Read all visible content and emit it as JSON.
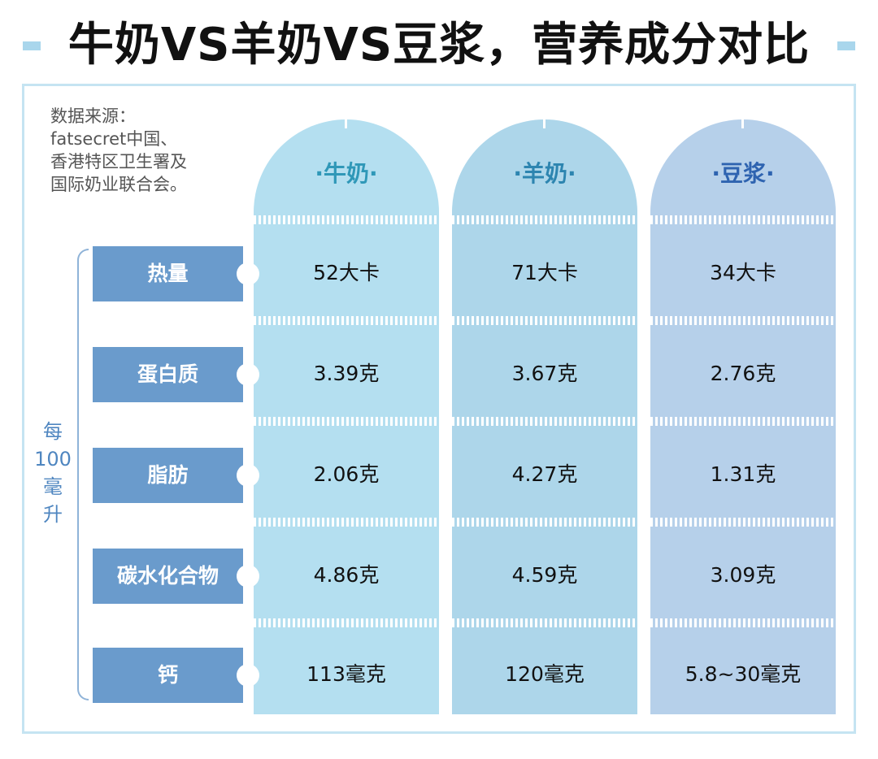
{
  "title": "牛奶VS羊奶VS豆浆，营养成分对比",
  "source": [
    "数据来源：",
    "fatsecret中国、",
    "香港特区卫生署及",
    "国际奶业联合会。"
  ],
  "unit_label": [
    "每",
    "100",
    "毫",
    "升"
  ],
  "columns": [
    {
      "name": "·牛奶·",
      "values": [
        "52大卡",
        "3.39克",
        "2.06克",
        "4.86克",
        "113毫克"
      ]
    },
    {
      "name": "·羊奶·",
      "values": [
        "71大卡",
        "3.67克",
        "4.27克",
        "4.59克",
        "120毫克"
      ]
    },
    {
      "name": "·豆浆·",
      "values": [
        "34大卡",
        "2.76克",
        "1.31克",
        "3.09克",
        "5.8~30毫克"
      ]
    }
  ],
  "rows": [
    "热量",
    "蛋白质",
    "脂肪",
    "碳水化合物",
    "钙"
  ],
  "colors": {
    "accent_label_bg": "#6a9bcc",
    "milk_col": "#b4dff0",
    "goat_col": "#add6ea",
    "soy_col": "#b6d0ea",
    "frame": "#c5e4f2"
  }
}
